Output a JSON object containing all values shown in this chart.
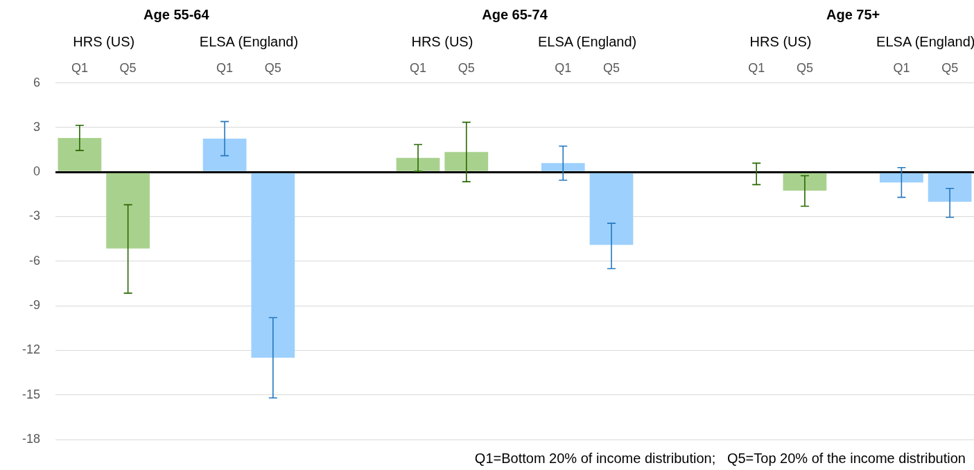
{
  "chart_data": {
    "type": "bar",
    "categories": [
      "Q1",
      "Q5",
      null,
      "Q1",
      "Q5",
      null,
      null,
      "Q1",
      "Q5",
      null,
      "Q1",
      "Q5",
      null,
      null,
      "Q1",
      "Q5",
      null,
      "Q1",
      "Q5"
    ],
    "values": [
      2.3,
      -5.15,
      null,
      2.25,
      -12.5,
      null,
      null,
      0.95,
      1.35,
      null,
      0.6,
      -4.9,
      null,
      null,
      0,
      -1.25,
      null,
      -0.7,
      -2
    ],
    "colors": [
      "#a9d18e",
      "#a9d18e",
      null,
      "#9dd0fd",
      "#9dd0fd",
      null,
      null,
      "#a9d18e",
      "#a9d18e",
      null,
      "#9dd0fd",
      "#9dd0fd",
      null,
      null,
      "#a9d18e",
      "#a9d18e",
      null,
      "#9dd0fd",
      "#9dd0fd"
    ],
    "errors": [
      [
        1.45,
        3.15
      ],
      [
        -8.15,
        -2.2
      ],
      null,
      [
        1.1,
        3.4
      ],
      [
        -15.2,
        -9.8
      ],
      null,
      null,
      [
        0.05,
        1.85
      ],
      [
        -0.65,
        3.35
      ],
      null,
      [
        -0.55,
        1.75
      ],
      [
        -6.5,
        -3.45
      ],
      null,
      null,
      [
        -0.85,
        0.6
      ],
      [
        -2.3,
        -0.25
      ],
      null,
      [
        -1.7,
        0.3
      ],
      [
        -3.05,
        -1.1
      ]
    ],
    "ylim": [
      -18,
      6
    ],
    "yticks": [
      -18,
      -15,
      -12,
      -9,
      -6,
      -3,
      0,
      3,
      6
    ],
    "grid": "y",
    "legend": false,
    "annotations": [
      "Age 55-64",
      "HRS (US)",
      "ELSA (England)",
      "Age 65-74",
      "HRS (US)",
      "ELSA (England)",
      "Age 75+",
      "HRS (US)",
      "ELSA (England)",
      "Q1=Bottom 20% of income distribution;   Q5=Top 20% of the income distribution"
    ]
  }
}
